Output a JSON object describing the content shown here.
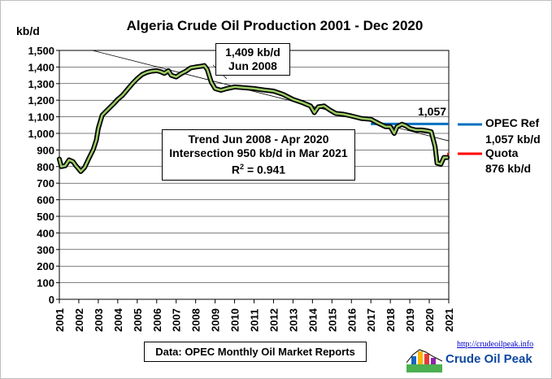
{
  "chart_data": {
    "type": "line",
    "title": "Algeria Crude Oil Production  2001 - Dec 2020",
    "ylabel": "kb/d",
    "ylim": [
      0,
      1500
    ],
    "yticks": [
      0,
      100,
      200,
      300,
      400,
      500,
      600,
      700,
      800,
      900,
      1000,
      1100,
      1200,
      1300,
      1400,
      1500
    ],
    "ytick_labels": [
      "0",
      "100",
      "200",
      "300",
      "400",
      "500",
      "600",
      "700",
      "800",
      "900",
      "1,000",
      "1,100",
      "1,200",
      "1,300",
      "1,400",
      "1,500"
    ],
    "xlim": [
      2001,
      2021
    ],
    "xticks": [
      2001,
      2002,
      2003,
      2004,
      2005,
      2006,
      2007,
      2008,
      2009,
      2010,
      2011,
      2012,
      2013,
      2014,
      2015,
      2016,
      2017,
      2018,
      2019,
      2020,
      2021
    ],
    "xtick_labels": [
      "2001",
      "2002",
      "2003",
      "2004",
      "2005",
      "2006",
      "2007",
      "2008",
      "2009",
      "2010",
      "2011",
      "2012",
      "2013",
      "2014",
      "2015",
      "2016",
      "2017",
      "2018",
      "2019",
      "2020",
      "2021"
    ],
    "grid": true,
    "series": [
      {
        "name": "",
        "color": "#9ccc65",
        "points": [
          [
            2001.0,
            845
          ],
          [
            2001.1,
            800
          ],
          [
            2001.3,
            805
          ],
          [
            2001.5,
            840
          ],
          [
            2001.7,
            830
          ],
          [
            2001.85,
            805
          ],
          [
            2002.0,
            785
          ],
          [
            2002.1,
            770
          ],
          [
            2002.3,
            795
          ],
          [
            2002.5,
            845
          ],
          [
            2002.75,
            905
          ],
          [
            2002.9,
            960
          ],
          [
            2003.0,
            1030
          ],
          [
            2003.2,
            1110
          ],
          [
            2003.5,
            1145
          ],
          [
            2003.8,
            1180
          ],
          [
            2004.0,
            1205
          ],
          [
            2004.25,
            1230
          ],
          [
            2004.5,
            1265
          ],
          [
            2004.75,
            1300
          ],
          [
            2005.0,
            1330
          ],
          [
            2005.25,
            1355
          ],
          [
            2005.5,
            1368
          ],
          [
            2005.75,
            1375
          ],
          [
            2006.0,
            1378
          ],
          [
            2006.2,
            1372
          ],
          [
            2006.4,
            1362
          ],
          [
            2006.6,
            1378
          ],
          [
            2006.75,
            1350
          ],
          [
            2007.0,
            1340
          ],
          [
            2007.25,
            1360
          ],
          [
            2007.5,
            1375
          ],
          [
            2007.75,
            1395
          ],
          [
            2008.0,
            1400
          ],
          [
            2008.3,
            1405
          ],
          [
            2008.45,
            1409
          ],
          [
            2008.6,
            1385
          ],
          [
            2008.8,
            1310
          ],
          [
            2009.0,
            1270
          ],
          [
            2009.3,
            1260
          ],
          [
            2009.6,
            1270
          ],
          [
            2010.0,
            1280
          ],
          [
            2010.5,
            1275
          ],
          [
            2011.0,
            1270
          ],
          [
            2011.5,
            1262
          ],
          [
            2012.0,
            1255
          ],
          [
            2012.5,
            1235
          ],
          [
            2013.0,
            1205
          ],
          [
            2013.5,
            1185
          ],
          [
            2013.9,
            1165
          ],
          [
            2014.1,
            1125
          ],
          [
            2014.3,
            1160
          ],
          [
            2014.6,
            1165
          ],
          [
            2014.9,
            1140
          ],
          [
            2015.2,
            1120
          ],
          [
            2015.6,
            1115
          ],
          [
            2016.0,
            1105
          ],
          [
            2016.5,
            1090
          ],
          [
            2017.0,
            1085
          ],
          [
            2017.4,
            1060
          ],
          [
            2017.75,
            1040
          ],
          [
            2018.0,
            1040
          ],
          [
            2018.2,
            1000
          ],
          [
            2018.35,
            1040
          ],
          [
            2018.6,
            1055
          ],
          [
            2018.8,
            1045
          ],
          [
            2019.0,
            1030
          ],
          [
            2019.3,
            1020
          ],
          [
            2019.6,
            1020
          ],
          [
            2019.9,
            1015
          ],
          [
            2020.1,
            1010
          ],
          [
            2020.3,
            920
          ],
          [
            2020.4,
            820
          ],
          [
            2020.6,
            815
          ],
          [
            2020.75,
            855
          ],
          [
            2020.92,
            855
          ]
        ]
      }
    ],
    "reference_lines": [
      {
        "name": "OPEC Ref",
        "value": 1057,
        "color": "#0070c0",
        "x_from": 2017.0,
        "x_to": 2021.0
      },
      {
        "name": "Quota",
        "value": 876,
        "color": "#ff0000",
        "x_from": 2020.92,
        "x_to": 2021.0
      }
    ],
    "trend_line": {
      "x_start": 2002.7,
      "y_start": 1500,
      "x_end": 2021.0,
      "y_end": 955
    }
  },
  "annotations": {
    "peak_line1": "1,409 kb/d",
    "peak_line2": "Jun 2008",
    "trend_line1": "Trend Jun 2008 - Apr 2020",
    "trend_line2": "Intersection 950 kb/d in Mar 2021",
    "trend_line3_prefix": "R",
    "trend_line3_sup": "2",
    "trend_line3_suffix": " = 0.941",
    "ref_value": "1,057",
    "legend_opec": "OPEC Ref",
    "legend_opec_value": "1,057 kb/d",
    "legend_quota": "Quota",
    "legend_quota_value": "876 kb/d",
    "source": "Data: OPEC Monthly Oil Market Reports",
    "logo_url": "http://crudeoilpeak.info",
    "logo_name": "Crude Oil Peak"
  }
}
